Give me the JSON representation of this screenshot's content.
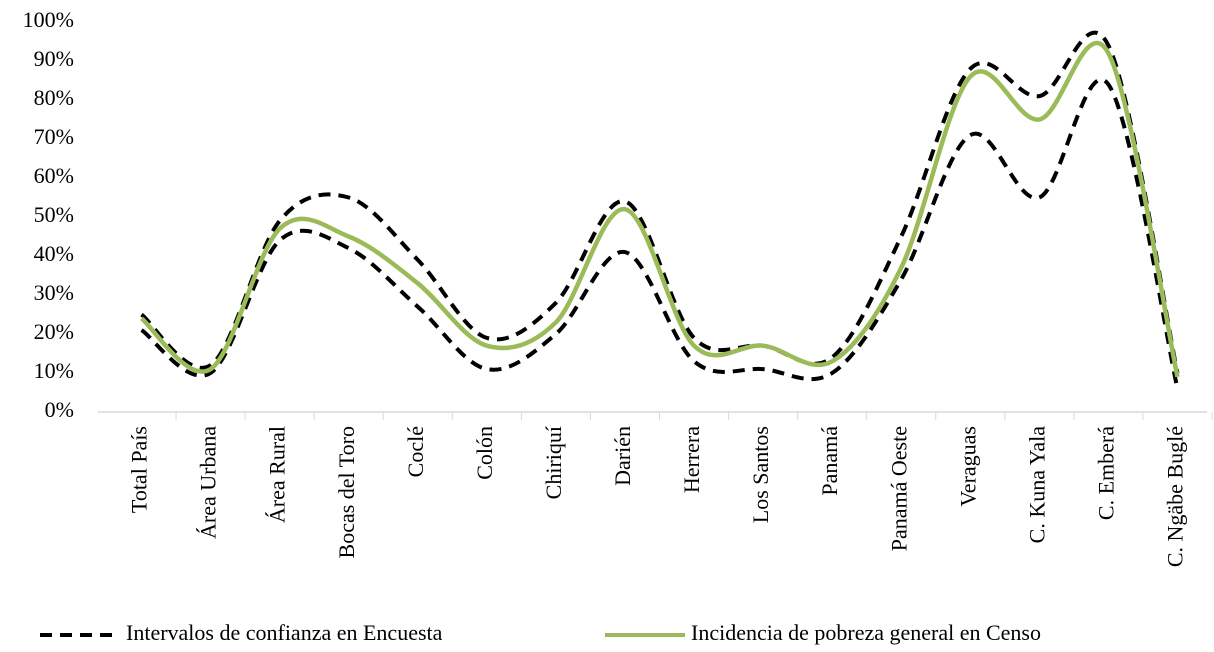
{
  "chart_data": {
    "type": "line",
    "categories": [
      "Total País",
      "Área Urbana",
      "Área Rural",
      "Bocas del Toro",
      "Coclé",
      "Colón",
      "Chiriquí",
      "Darién",
      "Herrera",
      "Los Santos",
      "Panamá",
      "Panamá Oeste",
      "Veraguas",
      "C. Kuna Yala",
      "C. Emberá",
      "C. Ngäbe Buglé"
    ],
    "series": [
      {
        "name": "Intervalos de confianza en Encuesta",
        "color": "#000000",
        "dashed": true,
        "values": [
          25,
          12,
          49,
          55,
          39,
          19,
          28,
          54,
          19,
          17,
          14,
          45,
          88,
          81,
          94,
          10
        ],
        "lower_values": [
          21,
          10,
          44,
          42,
          27,
          11,
          20,
          41,
          13,
          11,
          10,
          34,
          71,
          55,
          84,
          6
        ]
      },
      {
        "name": "Incidencia de pobreza general en Censo",
        "color": "#9bbb59",
        "dashed": false,
        "values": [
          24,
          11,
          47,
          45,
          33,
          17,
          23,
          52,
          17,
          17,
          13,
          37,
          86,
          75,
          92,
          9
        ]
      }
    ],
    "ylim": [
      0,
      100
    ],
    "yticks": [
      {
        "value": 0,
        "label": "0%"
      },
      {
        "value": 10,
        "label": "10%"
      },
      {
        "value": 20,
        "label": "20%"
      },
      {
        "value": 30,
        "label": "30%"
      },
      {
        "value": 40,
        "label": "40%"
      },
      {
        "value": 50,
        "label": "50%"
      },
      {
        "value": 60,
        "label": "60%"
      },
      {
        "value": 70,
        "label": "70%"
      },
      {
        "value": 80,
        "label": "80%"
      },
      {
        "value": 90,
        "label": "90%"
      },
      {
        "value": 100,
        "label": "100%"
      }
    ],
    "legend": "bottom"
  }
}
